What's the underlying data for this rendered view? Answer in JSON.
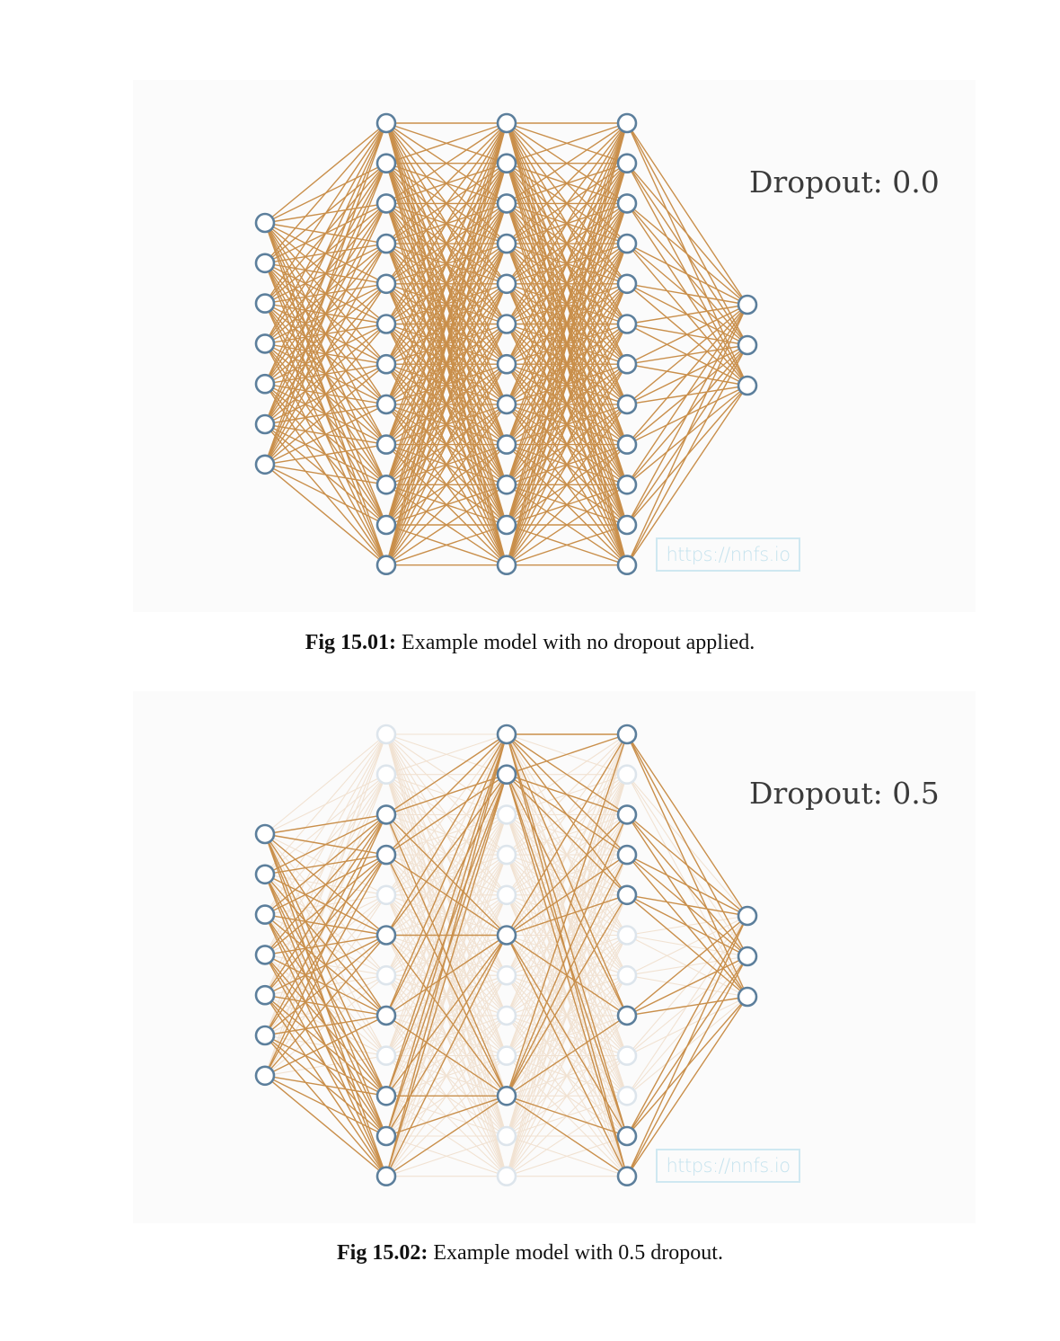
{
  "figures": [
    {
      "id": "fig-15-01",
      "dropout_label": "Dropout: 0.0",
      "dropout_rate": 0.0,
      "watermark": "https://nnfs.io",
      "caption_label": "Fig 15.01:",
      "caption_text": "Example model with no dropout applied.",
      "network": {
        "layers": [
          {
            "name": "input",
            "neurons": 7,
            "active": [
              1,
              1,
              1,
              1,
              1,
              1,
              1
            ]
          },
          {
            "name": "hidden-1",
            "neurons": 12,
            "active": [
              1,
              1,
              1,
              1,
              1,
              1,
              1,
              1,
              1,
              1,
              1,
              1
            ]
          },
          {
            "name": "hidden-2",
            "neurons": 12,
            "active": [
              1,
              1,
              1,
              1,
              1,
              1,
              1,
              1,
              1,
              1,
              1,
              1
            ]
          },
          {
            "name": "hidden-3",
            "neurons": 12,
            "active": [
              1,
              1,
              1,
              1,
              1,
              1,
              1,
              1,
              1,
              1,
              1,
              1
            ]
          },
          {
            "name": "output",
            "neurons": 3,
            "active": [
              1,
              1,
              1
            ]
          }
        ]
      }
    },
    {
      "id": "fig-15-02",
      "dropout_label": "Dropout: 0.5",
      "dropout_rate": 0.5,
      "watermark": "https://nnfs.io",
      "caption_label": "Fig 15.02:",
      "caption_text": "Example model with 0.5 dropout.",
      "network": {
        "layers": [
          {
            "name": "input",
            "neurons": 7,
            "active": [
              1,
              1,
              1,
              1,
              1,
              1,
              1
            ]
          },
          {
            "name": "hidden-1",
            "neurons": 12,
            "active": [
              0,
              0,
              1,
              1,
              0,
              1,
              0,
              1,
              0,
              1,
              1,
              1
            ]
          },
          {
            "name": "hidden-2",
            "neurons": 12,
            "active": [
              1,
              1,
              0,
              0,
              0,
              1,
              0,
              0,
              0,
              1,
              0,
              0
            ]
          },
          {
            "name": "hidden-3",
            "neurons": 12,
            "active": [
              1,
              0,
              1,
              1,
              1,
              0,
              0,
              1,
              0,
              0,
              1,
              1
            ]
          },
          {
            "name": "output",
            "neurons": 3,
            "active": [
              1,
              1,
              1
            ]
          }
        ]
      }
    }
  ],
  "colors": {
    "active_edge": "#c98f4b",
    "dropped_edge": "#f1e2d2",
    "active_neuron_stroke": "#5c7f9c",
    "dropped_neuron_stroke": "#dde5ec",
    "neuron_fill": "#ffffff",
    "watermark": "#c6e3ee"
  }
}
